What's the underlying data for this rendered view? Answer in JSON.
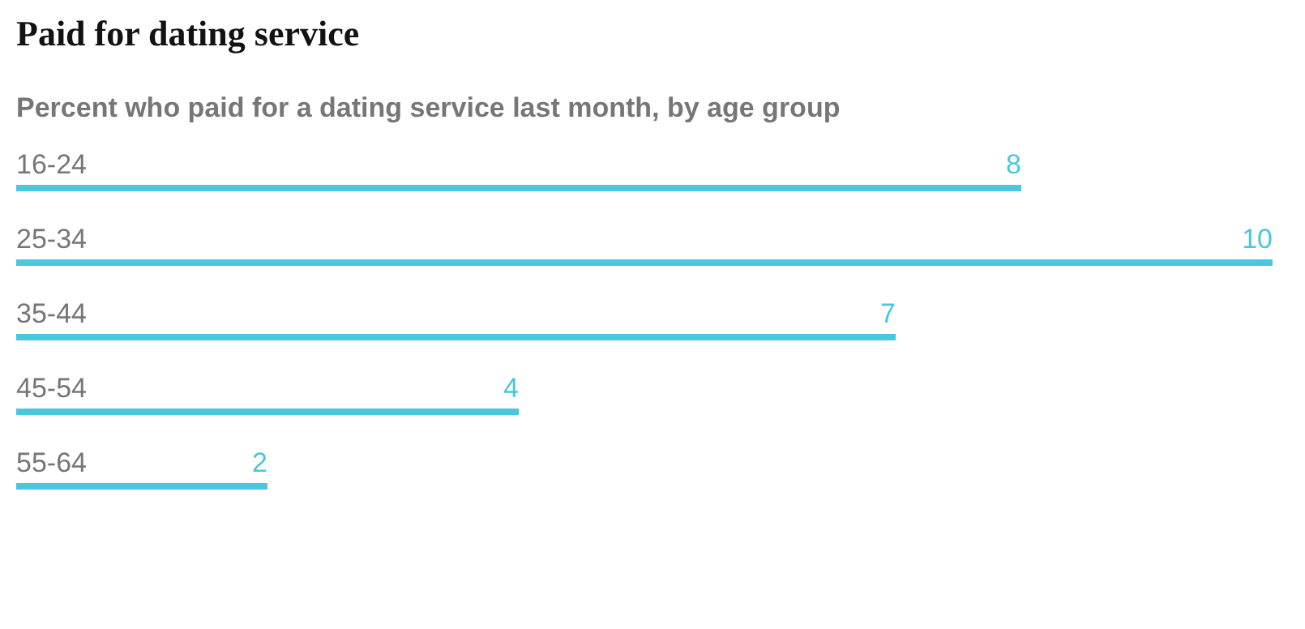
{
  "chart_data": {
    "type": "bar",
    "orientation": "horizontal",
    "title": "Paid for dating service",
    "subtitle": "Percent who paid for a dating service last month, by age group",
    "categories": [
      "16-24",
      "25-34",
      "35-44",
      "45-54",
      "55-64"
    ],
    "values": [
      8,
      10,
      7,
      4,
      2
    ],
    "color": "#4bc6df",
    "data_labels": true
  }
}
